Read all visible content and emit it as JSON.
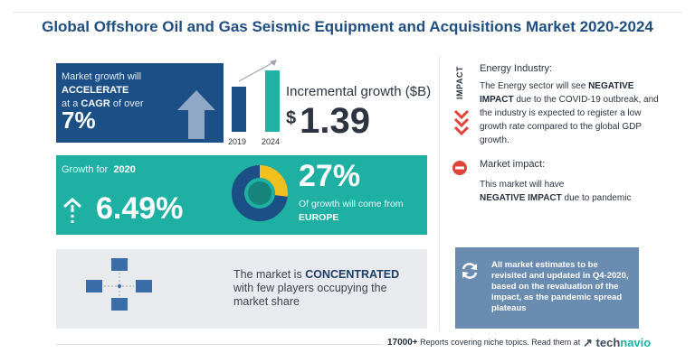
{
  "title": "Global Offshore Oil and Gas Seismic Equipment and Acquisitions Market 2020-2024",
  "cagr_card": {
    "prefix": "Market growth will",
    "accent": "ACCELERATE",
    "mid": "at a",
    "cagr_word": "CAGR",
    "suffix": "of over",
    "value": "7%"
  },
  "incremental": {
    "year_start": "2019",
    "year_end": "2024",
    "label": "Incremental growth ($B)",
    "currency": "$",
    "value": "1.39"
  },
  "growth_card": {
    "label": "Growth for",
    "year": "2020",
    "value": "6.49%",
    "share_value": "27%",
    "share_note": "Of growth will come from",
    "share_region": "EUROPE",
    "share_fraction": 0.27
  },
  "concentration": {
    "line1_prefix": "The market is",
    "line1_accent": "CONCENTRATED",
    "line2": "with few players occupying the market share"
  },
  "energy": {
    "impact_word": "IMPACT",
    "heading": "Energy Industry:",
    "text_prefix": "The Energy sector will see",
    "text_accent": "NEGATIVE IMPACT",
    "text_suffix": "due to the COVID-19 outbreak, and the industry is expected to register a low growth rate compared to the global GDP growth."
  },
  "market_impact": {
    "heading": "Market impact:",
    "text_prefix": "This market will have",
    "text_accent": "NEGATIVE IMPACT",
    "text_suffix": "due to pandemic"
  },
  "estimates_note": "All market estimates to be revisited and updated in Q4-2020, based on the revaluation of the impact, as the pandemic spread plateaus",
  "footer": {
    "count": "17000+",
    "text": "Reports covering niche topics. Read them at"
  },
  "logo": {
    "part1": "tech",
    "part2": "navio"
  },
  "colors": {
    "navy": "#1c4f86",
    "teal": "#1fb0a4",
    "yellow": "#f2c01e",
    "red": "#e0443a",
    "slate": "#6b8cb1"
  }
}
